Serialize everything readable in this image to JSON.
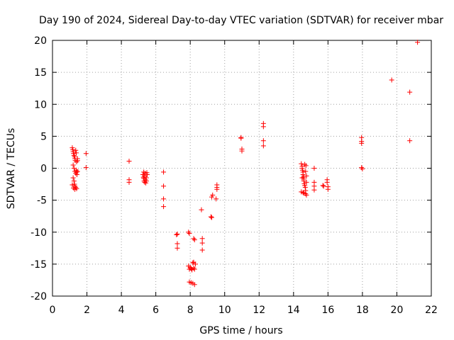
{
  "chart_data": {
    "type": "scatter",
    "title": "Day 190 of 2024, Sidereal Day-to-day VTEC variation (SDTVAR) for receiver mbar",
    "xlabel": "GPS time / hours",
    "ylabel": "SDTVAR / TECUs",
    "xlim": [
      0,
      22
    ],
    "ylim": [
      -20,
      20
    ],
    "xticks": [
      0,
      2,
      4,
      6,
      8,
      10,
      12,
      14,
      16,
      18,
      20,
      22
    ],
    "yticks": [
      -20,
      -15,
      -10,
      -5,
      0,
      5,
      10,
      15,
      20
    ],
    "grid": true,
    "marker": "+",
    "marker_color": "#ff0000",
    "series": [
      {
        "name": "SDTVAR",
        "points": [
          [
            1.15,
            3.2
          ],
          [
            1.18,
            2.9
          ],
          [
            1.2,
            2.6
          ],
          [
            1.22,
            2.3
          ],
          [
            1.25,
            2.0
          ],
          [
            1.28,
            1.8
          ],
          [
            1.3,
            1.5
          ],
          [
            1.32,
            1.2
          ],
          [
            1.35,
            2.8
          ],
          [
            1.38,
            2.4
          ],
          [
            1.4,
            1.0
          ],
          [
            1.2,
            0.5
          ],
          [
            1.25,
            0.0
          ],
          [
            1.3,
            -0.5
          ],
          [
            1.35,
            -0.8
          ],
          [
            1.38,
            -0.3
          ],
          [
            1.4,
            -0.6
          ],
          [
            1.42,
            -1.0
          ],
          [
            1.2,
            -1.5
          ],
          [
            1.25,
            -2.0
          ],
          [
            1.28,
            -2.5
          ],
          [
            1.3,
            -2.8
          ],
          [
            1.35,
            -3.0
          ],
          [
            1.4,
            -3.2
          ],
          [
            1.22,
            -3.1
          ],
          [
            1.3,
            -3.3
          ],
          [
            1.45,
            -0.5
          ],
          [
            1.45,
            1.5
          ],
          [
            1.45,
            1.2
          ],
          [
            1.15,
            -2.6
          ],
          [
            1.95,
            2.3
          ],
          [
            1.95,
            0.1
          ],
          [
            4.45,
            1.1
          ],
          [
            4.45,
            -1.8
          ],
          [
            4.45,
            -2.2
          ],
          [
            5.25,
            -1.0
          ],
          [
            5.28,
            -1.4
          ],
          [
            5.3,
            -1.6
          ],
          [
            5.32,
            -2.0
          ],
          [
            5.35,
            -1.2
          ],
          [
            5.38,
            -0.8
          ],
          [
            5.4,
            -1.8
          ],
          [
            5.42,
            -2.3
          ],
          [
            5.45,
            -1.5
          ],
          [
            5.48,
            -0.7
          ],
          [
            5.5,
            -1.0
          ],
          [
            5.3,
            -0.6
          ],
          [
            5.35,
            -2.2
          ],
          [
            5.45,
            -2.0
          ],
          [
            6.45,
            -0.6
          ],
          [
            6.45,
            -2.8
          ],
          [
            6.45,
            -4.8
          ],
          [
            6.45,
            -6.0
          ],
          [
            7.2,
            -10.4
          ],
          [
            7.25,
            -10.3
          ],
          [
            7.25,
            -11.8
          ],
          [
            7.25,
            -12.5
          ],
          [
            7.9,
            -10.0
          ],
          [
            7.95,
            -10.2
          ],
          [
            8.2,
            -11.0
          ],
          [
            8.25,
            -11.2
          ],
          [
            7.9,
            -15.3
          ],
          [
            7.95,
            -15.8
          ],
          [
            8.0,
            -15.5
          ],
          [
            8.05,
            -15.7
          ],
          [
            8.1,
            -15.9
          ],
          [
            8.2,
            -15.6
          ],
          [
            8.25,
            -15.8
          ],
          [
            8.15,
            -14.8
          ],
          [
            8.2,
            -14.7
          ],
          [
            8.3,
            -15.0
          ],
          [
            7.95,
            -17.8
          ],
          [
            8.05,
            -17.9
          ],
          [
            8.15,
            -18.0
          ],
          [
            8.25,
            -18.2
          ],
          [
            8.65,
            -6.5
          ],
          [
            8.7,
            -11.0
          ],
          [
            8.7,
            -11.7
          ],
          [
            8.7,
            -12.8
          ],
          [
            9.2,
            -7.6
          ],
          [
            9.25,
            -7.7
          ],
          [
            9.25,
            -4.5
          ],
          [
            9.3,
            -4.2
          ],
          [
            9.5,
            -4.8
          ],
          [
            9.55,
            -3.3
          ],
          [
            9.55,
            -3.0
          ],
          [
            9.55,
            -2.6
          ],
          [
            10.95,
            4.8
          ],
          [
            10.95,
            4.7
          ],
          [
            11.0,
            3.0
          ],
          [
            11.0,
            2.7
          ],
          [
            12.25,
            7.0
          ],
          [
            12.25,
            6.5
          ],
          [
            12.25,
            4.3
          ],
          [
            12.25,
            3.5
          ],
          [
            14.45,
            0.7
          ],
          [
            14.5,
            0.3
          ],
          [
            14.5,
            0.0
          ],
          [
            14.52,
            -0.3
          ],
          [
            14.55,
            -0.6
          ],
          [
            14.55,
            -1.0
          ],
          [
            14.58,
            -1.4
          ],
          [
            14.6,
            -1.7
          ],
          [
            14.6,
            -2.0
          ],
          [
            14.62,
            -2.4
          ],
          [
            14.65,
            -2.7
          ],
          [
            14.68,
            -3.0
          ],
          [
            14.7,
            -0.5
          ],
          [
            14.72,
            0.4
          ],
          [
            14.75,
            -1.2
          ],
          [
            14.75,
            -2.2
          ],
          [
            14.45,
            -3.7
          ],
          [
            14.55,
            -3.8
          ],
          [
            14.6,
            -3.9
          ],
          [
            14.7,
            -4.0
          ],
          [
            14.75,
            -4.2
          ],
          [
            14.7,
            -3.5
          ],
          [
            14.5,
            -1.5
          ],
          [
            14.65,
            0.6
          ],
          [
            15.2,
            0.0
          ],
          [
            15.2,
            -2.2
          ],
          [
            15.2,
            -2.8
          ],
          [
            15.2,
            -3.4
          ],
          [
            15.7,
            -2.7
          ],
          [
            15.75,
            -2.8
          ],
          [
            15.95,
            -1.8
          ],
          [
            15.95,
            -2.2
          ],
          [
            16.0,
            -2.9
          ],
          [
            16.0,
            -3.3
          ],
          [
            17.95,
            4.8
          ],
          [
            17.95,
            4.2
          ],
          [
            17.95,
            3.9
          ],
          [
            17.95,
            0.1
          ],
          [
            18.0,
            -0.1
          ],
          [
            19.7,
            13.8
          ],
          [
            20.75,
            11.9
          ],
          [
            20.75,
            4.3
          ],
          [
            21.2,
            19.7
          ]
        ]
      }
    ]
  }
}
